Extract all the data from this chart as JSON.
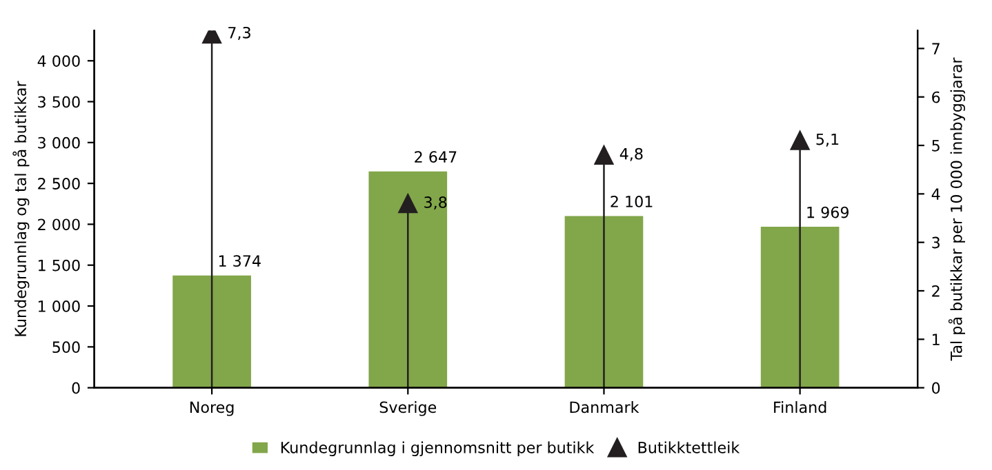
{
  "chart_data": {
    "type": "bar",
    "categories": [
      "Noreg",
      "Sverige",
      "Danmark",
      "Finland"
    ],
    "ylabel": "Kundegrunnlag og tal på butikkar",
    "y2label": "Tal på butikkar per 10 000 innbyggjarar",
    "series": [
      {
        "name": "Kundegrunnlag i gjennomsnitt per butikk",
        "color": "#82a64a",
        "values": [
          1374,
          2647,
          2101,
          1969
        ],
        "value_labels": [
          "1 374",
          "2 647",
          "2 101",
          "1 969"
        ]
      },
      {
        "name": "Butikktettleik",
        "type": "lollipop",
        "axis": "y2",
        "color": "#231f20",
        "marker": "triangle",
        "values": [
          7.3,
          3.8,
          4.8,
          5.1
        ],
        "value_labels": [
          "7,3",
          "3,8",
          "4,8",
          "5,1"
        ]
      }
    ],
    "ylim": [
      0,
      4370
    ],
    "yticks": [
      {
        "value": 0,
        "label": "0"
      },
      {
        "value": 500,
        "label": "500"
      },
      {
        "value": 1000,
        "label": "1 000"
      },
      {
        "value": 1500,
        "label": "1 500"
      },
      {
        "value": 2000,
        "label": "2 000"
      },
      {
        "value": 2500,
        "label": "2 500"
      },
      {
        "value": 3000,
        "label": "3 000"
      },
      {
        "value": 3500,
        "label": "3 500"
      },
      {
        "value": 4000,
        "label": "4 000"
      }
    ],
    "y2lim": [
      0,
      7.37
    ],
    "y2ticks": [
      0,
      1,
      2,
      3,
      4,
      5,
      6,
      7
    ],
    "legend": "bottom"
  }
}
